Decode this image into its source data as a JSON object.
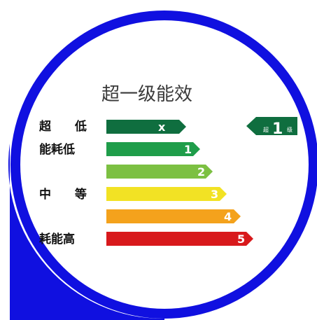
{
  "title": "超一级能效",
  "labels": {
    "super_low": "超 低",
    "energy_low": "能耗低",
    "medium": "中 等",
    "energy_high": "耗能高"
  },
  "grades": [
    {
      "label": "x",
      "color": "#0f6e3f"
    },
    {
      "label": "1",
      "color": "#1f9d4a"
    },
    {
      "label": "2",
      "color": "#7cc042"
    },
    {
      "label": "3",
      "color": "#f2e224"
    },
    {
      "label": "4",
      "color": "#f4a21c"
    },
    {
      "label": "5",
      "color": "#d8191c"
    }
  ],
  "indicator": {
    "prefix": "超",
    "grade": "1",
    "suffix": "级",
    "color": "#0f6e3f"
  },
  "colors": {
    "ring": "#1010e0",
    "background": "#ffffff"
  }
}
